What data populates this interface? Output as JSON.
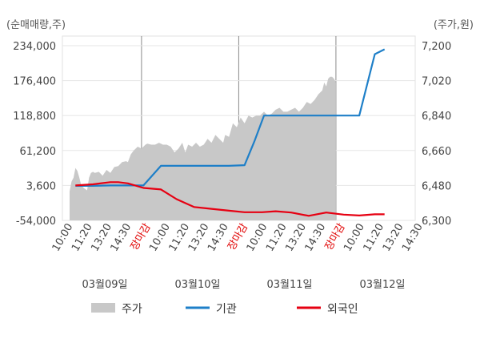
{
  "chart_data": {
    "type": "area+line",
    "y_left_title": "(순매매량,주)",
    "y_right_title": "(주가,원)",
    "y_left_ticks": [
      "234,000",
      "176,400",
      "118,800",
      "61,200",
      "3,600",
      "-54,000"
    ],
    "y_left_values": [
      234000,
      176400,
      118800,
      61200,
      3600,
      -54000
    ],
    "y_left_range": [
      -54000,
      234000
    ],
    "y_right_ticks": [
      "7,200",
      "7,020",
      "6,840",
      "6,660",
      "6,480",
      "6,300"
    ],
    "y_right_values": [
      7200,
      7020,
      6840,
      6660,
      6480,
      6300
    ],
    "y_right_range": [
      6300,
      7200
    ],
    "x_tick_labels": [
      "10:00",
      "11:20",
      "13:20",
      "14:30",
      "장마감",
      "10:00",
      "11:20",
      "13:20",
      "14:30",
      "장마감",
      "10:00",
      "11:20",
      "13:20",
      "14:30",
      "장마감",
      "10:00",
      "11:20",
      "13:20",
      "14:30"
    ],
    "x_tick_is_close": [
      false,
      false,
      false,
      false,
      true,
      false,
      false,
      false,
      false,
      true,
      false,
      false,
      false,
      false,
      true,
      false,
      false,
      false,
      false
    ],
    "day_labels": [
      "03월09일",
      "03월10일",
      "03월11일",
      "03월12일"
    ],
    "slot_count": 18,
    "legend": [
      {
        "name": "주가",
        "color": "#c8c8c8",
        "kind": "area"
      },
      {
        "name": "기관",
        "color": "#1e7fc8",
        "kind": "line"
      },
      {
        "name": "외국인",
        "color": "#e60012",
        "kind": "line"
      }
    ],
    "series": [
      {
        "name": "주가",
        "axis": "right",
        "x": [
          0,
          0.1,
          0.2,
          0.3,
          0.4,
          0.5,
          0.6,
          0.75,
          0.9,
          1.0,
          1.1,
          1.2,
          1.3,
          1.5,
          1.7,
          1.9,
          2.1,
          2.3,
          2.5,
          2.7,
          2.9,
          3.0,
          3.15,
          3.3,
          3.5,
          3.7,
          3.9,
          4.0,
          4.2,
          4.4,
          4.6,
          4.8,
          5.0,
          5.2,
          5.4,
          5.6,
          5.8,
          5.95,
          6.1,
          6.3,
          6.5,
          6.7,
          6.9,
          7.1,
          7.3,
          7.5,
          7.7,
          7.9,
          8.0,
          8.2,
          8.4,
          8.6,
          8.8,
          9.0,
          9.2,
          9.4,
          9.6,
          9.8,
          10.0,
          10.2,
          10.4,
          10.6,
          10.8,
          11.0,
          11.2,
          11.4,
          11.6,
          11.8,
          12.0,
          12.2,
          12.4,
          12.6,
          12.8,
          13.0,
          13.1,
          13.2,
          13.3,
          13.4,
          13.5,
          13.6,
          13.7
        ],
        "values": [
          6450,
          6500,
          6520,
          6570,
          6555,
          6520,
          6480,
          6465,
          6455,
          6520,
          6545,
          6550,
          6545,
          6550,
          6530,
          6560,
          6545,
          6575,
          6580,
          6600,
          6605,
          6600,
          6640,
          6660,
          6680,
          6670,
          6690,
          6695,
          6690,
          6690,
          6700,
          6690,
          6690,
          6680,
          6650,
          6670,
          6700,
          6650,
          6690,
          6680,
          6700,
          6680,
          6690,
          6720,
          6700,
          6740,
          6720,
          6700,
          6740,
          6730,
          6800,
          6780,
          6830,
          6800,
          6840,
          6830,
          6840,
          6840,
          6860,
          6840,
          6850,
          6870,
          6880,
          6860,
          6860,
          6870,
          6880,
          6860,
          6880,
          6910,
          6900,
          6920,
          6950,
          6970,
          7010,
          6990,
          7030,
          7040,
          7040,
          7030,
          7010
        ]
      },
      {
        "name": "기관",
        "axis": "left",
        "x": [
          0.3,
          1.2,
          2.1,
          3.0,
          3.8,
          4.7,
          5.5,
          6.4,
          7.3,
          8.2,
          9.0,
          9.5,
          10.0,
          10.5,
          11.4,
          12.2,
          13.2,
          14.1,
          14.9,
          15.7,
          16.2
        ],
        "values": [
          3000,
          3000,
          3600,
          3600,
          3600,
          36000,
          36000,
          36000,
          36000,
          36000,
          37000,
          76000,
          118800,
          118800,
          118800,
          118800,
          118800,
          118800,
          118800,
          220000,
          228000
        ]
      },
      {
        "name": "외국인",
        "axis": "left",
        "x": [
          0.3,
          1.2,
          2.1,
          2.5,
          3.0,
          3.8,
          4.7,
          5.5,
          6.4,
          7.3,
          8.2,
          9.0,
          9.9,
          10.6,
          11.4,
          12.3,
          13.2,
          14.1,
          14.9,
          15.7,
          16.2
        ],
        "values": [
          3600,
          5500,
          9000,
          9000,
          7000,
          -500,
          -3000,
          -19000,
          -32000,
          -35000,
          -38000,
          -40500,
          -40500,
          -39000,
          -41000,
          -46500,
          -41000,
          -44500,
          -46000,
          -44000,
          -44000
        ]
      }
    ]
  }
}
